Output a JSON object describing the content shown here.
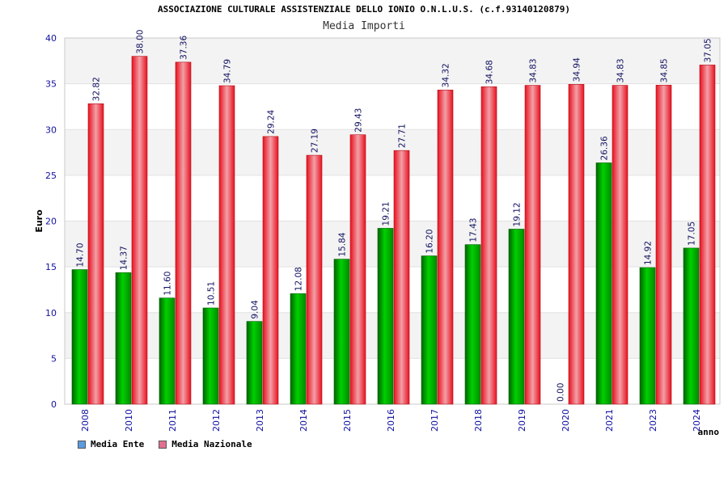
{
  "header": {
    "title": "ASSOCIAZIONE CULTURALE ASSISTENZIALE DELLO IONIO O.N.L.U.S. (c.f.93140120879)",
    "subtitle": "Media Importi"
  },
  "legend": {
    "items": [
      {
        "label": "Media Ente",
        "color": "#5B9BE0"
      },
      {
        "label": "Media Nazionale",
        "color": "#E07090"
      }
    ]
  },
  "chart_data": {
    "type": "bar",
    "title": "Media Importi",
    "xlabel": "anno",
    "ylabel": "Euro",
    "ylim": [
      0,
      40
    ],
    "yticks": [
      0,
      5,
      10,
      15,
      20,
      25,
      30,
      35,
      40
    ],
    "grid": true,
    "legend_position": "bottom-left",
    "categories": [
      "2008",
      "2010",
      "2011",
      "2012",
      "2013",
      "2014",
      "2015",
      "2016",
      "2017",
      "2018",
      "2019",
      "2020",
      "2021",
      "2023",
      "2024"
    ],
    "series": [
      {
        "name": "Media Ente",
        "color": "#00B000",
        "values": [
          14.7,
          14.37,
          11.6,
          10.51,
          9.04,
          12.08,
          15.84,
          19.21,
          16.2,
          17.43,
          19.12,
          0.0,
          26.36,
          14.92,
          17.05
        ],
        "labels": [
          "14.70",
          "14.37",
          "11.60",
          "10.51",
          "9.04",
          "12.08",
          "15.84",
          "19.21",
          "16.20",
          "17.43",
          "19.12",
          "0.00",
          "26.36",
          "14.92",
          "17.05"
        ]
      },
      {
        "name": "Media Nazionale",
        "color": "#E8202A",
        "values": [
          32.82,
          38.0,
          37.36,
          34.79,
          29.24,
          27.19,
          29.43,
          27.71,
          34.32,
          34.68,
          34.83,
          34.94,
          34.83,
          34.85,
          37.05
        ],
        "labels": [
          "32.82",
          "38.00",
          "37.36",
          "34.79",
          "29.24",
          "27.19",
          "29.43",
          "27.71",
          "34.32",
          "34.68",
          "34.83",
          "34.94",
          "34.83",
          "34.85",
          "37.05"
        ]
      }
    ]
  }
}
